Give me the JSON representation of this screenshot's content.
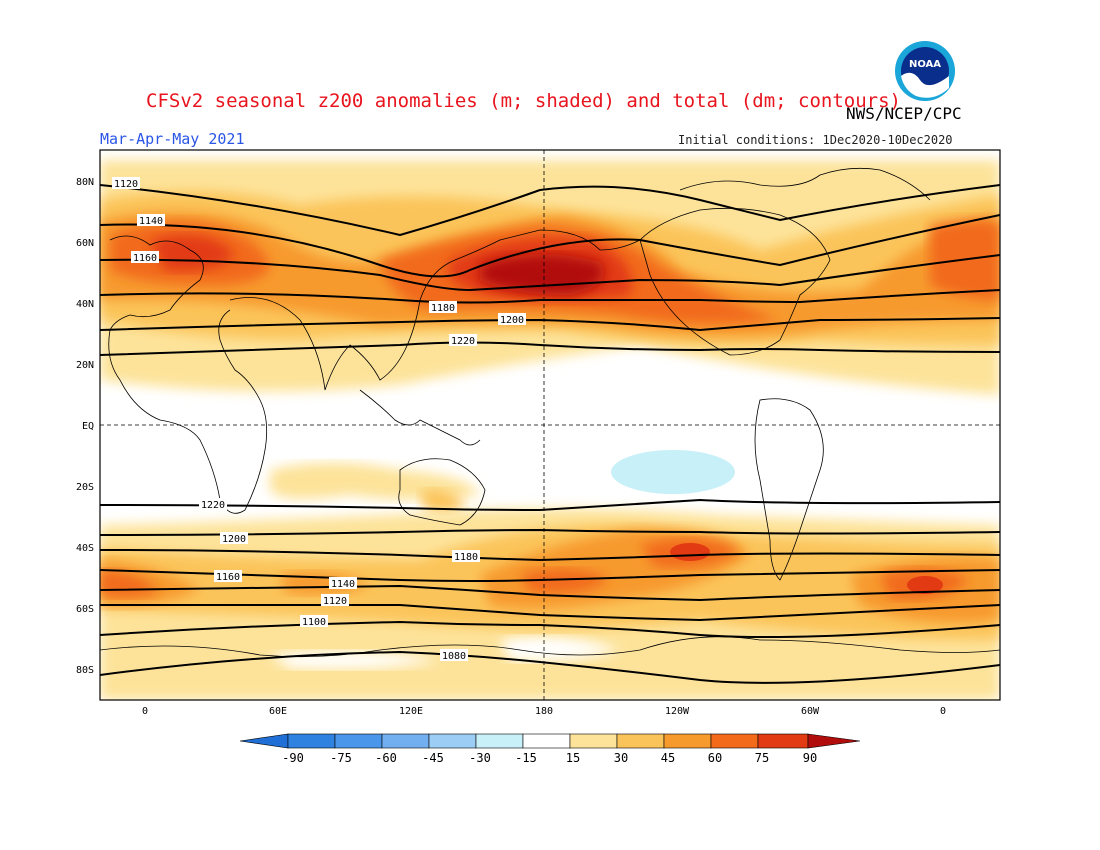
{
  "header": {
    "title": "CFSv2 seasonal z200 anomalies (m; shaded) and total (dm; contours)",
    "agency": "NWS/NCEP/CPC",
    "season": "Mar-Apr-May 2021",
    "initial_conditions": "Initial conditions: 1Dec2020-10Dec2020",
    "logo_text": "NOAA"
  },
  "axes": {
    "lat_ticks": [
      "80N",
      "60N",
      "40N",
      "20N",
      "EQ",
      "20S",
      "40S",
      "60S",
      "80S"
    ],
    "lon_ticks": [
      "0",
      "60E",
      "120E",
      "180",
      "120W",
      "60W",
      "0"
    ]
  },
  "colorbar": {
    "labels": [
      "-90",
      "-75",
      "-60",
      "-45",
      "-30",
      "-15",
      "15",
      "30",
      "45",
      "60",
      "75",
      "90"
    ],
    "colors": [
      "#1f6fd6",
      "#2f82e0",
      "#4a96ea",
      "#72aff0",
      "#9ccdf5",
      "#c8f0f8",
      "#ffffff",
      "#fde39a",
      "#fbc45a",
      "#f79a2e",
      "#f26a1a",
      "#e23a12",
      "#b20d0d"
    ]
  },
  "contour_labels": [
    "1120",
    "1140",
    "1160",
    "1180",
    "1200",
    "1220",
    "1220",
    "1200",
    "1180",
    "1160",
    "1140",
    "1120",
    "1100",
    "1080"
  ]
}
